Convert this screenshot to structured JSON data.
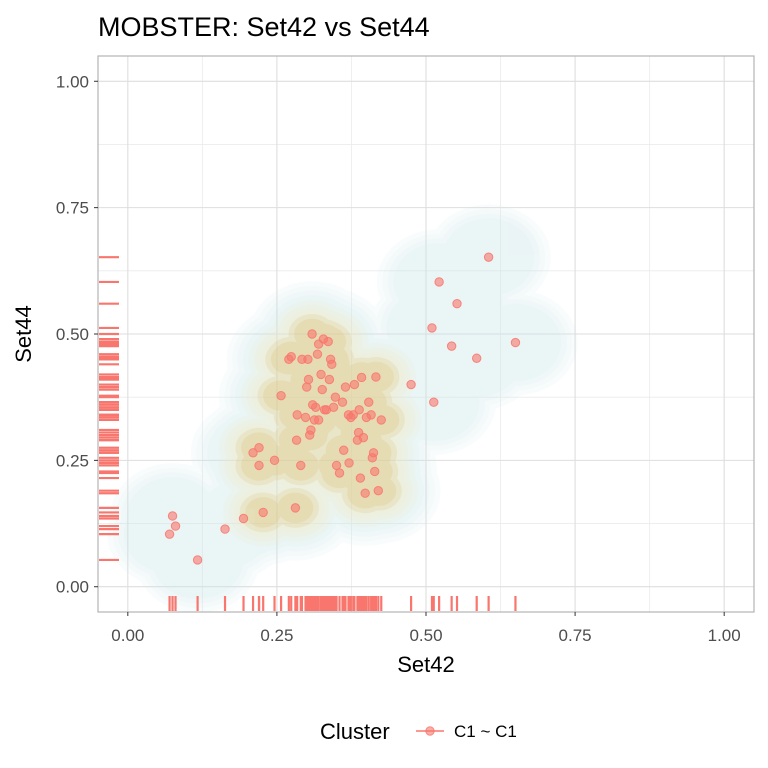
{
  "chart_data": {
    "type": "scatter",
    "title": "MOBSTER: Set42 vs Set44",
    "xlabel": "Set42",
    "ylabel": "Set44",
    "xlim": [
      -0.05,
      1.05
    ],
    "ylim": [
      -0.05,
      1.05
    ],
    "x_ticks": [
      "0.00",
      "0.25",
      "0.50",
      "0.75",
      "1.00"
    ],
    "y_ticks": [
      "0.00",
      "0.25",
      "0.50",
      "0.75",
      "1.00"
    ],
    "grid": true,
    "legend": {
      "title": "Cluster",
      "entries": [
        "C1 ~ C1"
      ],
      "position": "bottom"
    },
    "series": [
      {
        "name": "C1 ~ C1",
        "color": "#F8766D",
        "points": [
          [
            0.07,
            0.104
          ],
          [
            0.075,
            0.14
          ],
          [
            0.08,
            0.12
          ],
          [
            0.117,
            0.053
          ],
          [
            0.163,
            0.114
          ],
          [
            0.194,
            0.135
          ],
          [
            0.21,
            0.265
          ],
          [
            0.22,
            0.24
          ],
          [
            0.22,
            0.275
          ],
          [
            0.227,
            0.147
          ],
          [
            0.246,
            0.25
          ],
          [
            0.257,
            0.378
          ],
          [
            0.27,
            0.45
          ],
          [
            0.274,
            0.455
          ],
          [
            0.281,
            0.156
          ],
          [
            0.283,
            0.29
          ],
          [
            0.284,
            0.34
          ],
          [
            0.29,
            0.24
          ],
          [
            0.292,
            0.45
          ],
          [
            0.298,
            0.335
          ],
          [
            0.3,
            0.395
          ],
          [
            0.302,
            0.45
          ],
          [
            0.303,
            0.41
          ],
          [
            0.305,
            0.3
          ],
          [
            0.307,
            0.31
          ],
          [
            0.309,
            0.5
          ],
          [
            0.31,
            0.36
          ],
          [
            0.313,
            0.33
          ],
          [
            0.315,
            0.355
          ],
          [
            0.318,
            0.46
          ],
          [
            0.32,
            0.33
          ],
          [
            0.32,
            0.48
          ],
          [
            0.324,
            0.42
          ],
          [
            0.326,
            0.39
          ],
          [
            0.328,
            0.49
          ],
          [
            0.33,
            0.35
          ],
          [
            0.333,
            0.35
          ],
          [
            0.336,
            0.485
          ],
          [
            0.338,
            0.41
          ],
          [
            0.34,
            0.45
          ],
          [
            0.342,
            0.44
          ],
          [
            0.345,
            0.355
          ],
          [
            0.348,
            0.375
          ],
          [
            0.35,
            0.24
          ],
          [
            0.355,
            0.225
          ],
          [
            0.36,
            0.365
          ],
          [
            0.362,
            0.27
          ],
          [
            0.365,
            0.395
          ],
          [
            0.37,
            0.34
          ],
          [
            0.371,
            0.245
          ],
          [
            0.374,
            0.335
          ],
          [
            0.378,
            0.34
          ],
          [
            0.38,
            0.4
          ],
          [
            0.385,
            0.29
          ],
          [
            0.387,
            0.305
          ],
          [
            0.388,
            0.35
          ],
          [
            0.39,
            0.215
          ],
          [
            0.392,
            0.414
          ],
          [
            0.395,
            0.295
          ],
          [
            0.398,
            0.185
          ],
          [
            0.4,
            0.335
          ],
          [
            0.404,
            0.365
          ],
          [
            0.408,
            0.34
          ],
          [
            0.41,
            0.255
          ],
          [
            0.412,
            0.265
          ],
          [
            0.414,
            0.228
          ],
          [
            0.416,
            0.415
          ],
          [
            0.42,
            0.19
          ],
          [
            0.425,
            0.33
          ],
          [
            0.475,
            0.4
          ],
          [
            0.51,
            0.512
          ],
          [
            0.513,
            0.365
          ],
          [
            0.522,
            0.603
          ],
          [
            0.543,
            0.476
          ],
          [
            0.552,
            0.56
          ],
          [
            0.585,
            0.452
          ],
          [
            0.605,
            0.652
          ],
          [
            0.65,
            0.483
          ]
        ]
      }
    ],
    "density_levels": 9,
    "density_colors": [
      "#cde8ea",
      "#f6e6b8",
      "#d7b049"
    ],
    "rug": true
  }
}
